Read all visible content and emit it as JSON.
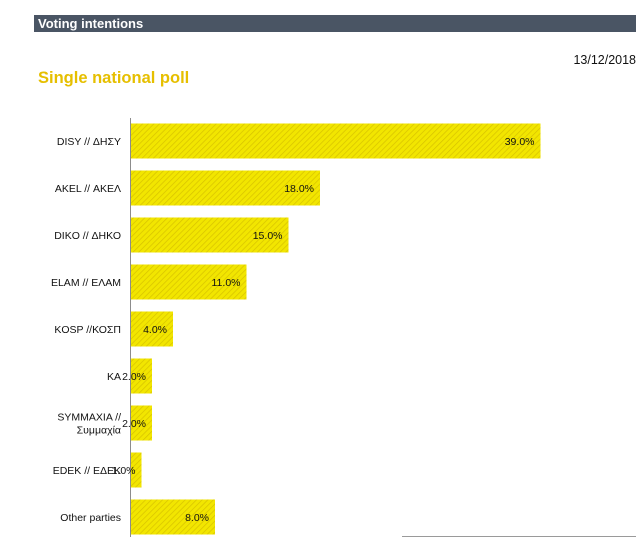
{
  "header": {
    "title": "Voting intentions"
  },
  "date": "13/12/2018",
  "subtitle": "Single national poll",
  "colors": {
    "bar": "#f2e600",
    "bar_hatch": "#d7c200",
    "header_bg": "#4a5564",
    "subtitle": "#e6bf00"
  },
  "chart_data": {
    "type": "bar",
    "orientation": "horizontal",
    "title": "Single national poll",
    "categories": [
      [
        "DISY // ΔΗΣΥ"
      ],
      [
        "AKEL // ΑΚΕΛ"
      ],
      [
        "DIKO // ΔΗΚΟ"
      ],
      [
        "ELAM // ΕΛΑΜ"
      ],
      [
        "KOSP //ΚΟΣΠ"
      ],
      [
        "ΚΑ"
      ],
      [
        "SYMMAXIA //",
        "Συμμαχία"
      ],
      [
        "EDEK // ΕΔΕΚ"
      ],
      [
        "Other parties"
      ]
    ],
    "values": [
      39.0,
      18.0,
      15.0,
      11.0,
      4.0,
      2.0,
      2.0,
      1.0,
      8.0
    ],
    "data_labels": [
      "39.0%",
      "18.0%",
      "15.0%",
      "11.0%",
      "4.0%",
      "2.0%",
      "2.0%",
      "1.0%",
      "8.0%"
    ],
    "xlim": [
      0,
      40
    ],
    "xlabel": "",
    "ylabel": "",
    "grid": false,
    "legend": "none"
  }
}
